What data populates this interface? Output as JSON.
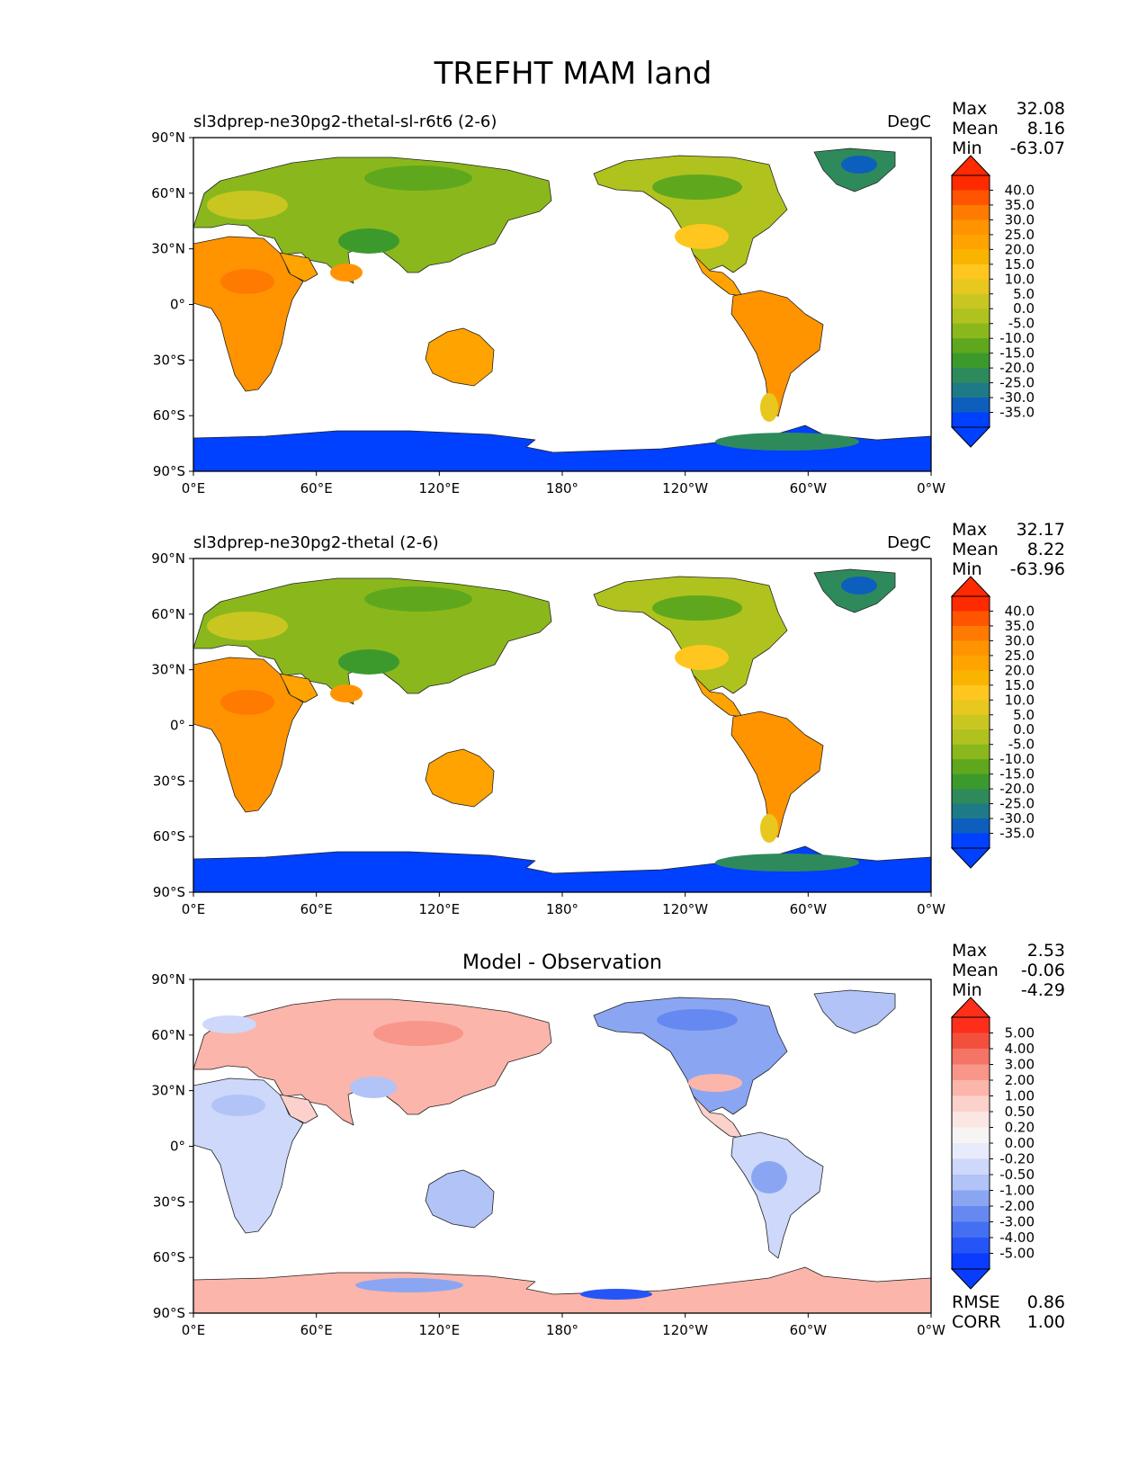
{
  "title": "TREFHT MAM land",
  "x_ticks": [
    "0°E",
    "60°E",
    "120°E",
    "180°",
    "120°W",
    "60°W",
    "0°W"
  ],
  "y_ticks": [
    "90°N",
    "60°N",
    "30°N",
    "0°",
    "30°S",
    "60°S",
    "90°S"
  ],
  "panels": [
    {
      "left_title": "sl3dprep-ne30pg2-thetal-sl-r6t6 (2-6)",
      "center_title": "",
      "units": "DegC",
      "stats": {
        "Max": "32.08",
        "Mean": "8.16",
        "Min": "-63.07"
      },
      "colorbar": {
        "labels": [
          "40.0",
          "35.0",
          "30.0",
          "25.0",
          "20.0",
          "15.0",
          "10.0",
          "5.0",
          "0.0",
          "-5.0",
          "-10.0",
          "-15.0",
          "-20.0",
          "-25.0",
          "-30.0",
          "-35.0"
        ],
        "colors": [
          "#ff2a00",
          "#ff5500",
          "#ff7a00",
          "#ff9400",
          "#ffa300",
          "#f9b400",
          "#ffc61f",
          "#e8c81e",
          "#c9c622",
          "#b0c21e",
          "#8ab81c",
          "#5fa81d",
          "#3c9a2c",
          "#2f8a5b",
          "#1f7a87",
          "#0d5fbd",
          "#0040ff"
        ],
        "max_color": "#ff2a00",
        "min_color": "#0040ff"
      },
      "footer": null
    },
    {
      "left_title": "sl3dprep-ne30pg2-thetal (2-6)",
      "center_title": "",
      "units": "DegC",
      "stats": {
        "Max": "32.17",
        "Mean": "8.22",
        "Min": "-63.96"
      },
      "colorbar": {
        "labels": [
          "40.0",
          "35.0",
          "30.0",
          "25.0",
          "20.0",
          "15.0",
          "10.0",
          "5.0",
          "0.0",
          "-5.0",
          "-10.0",
          "-15.0",
          "-20.0",
          "-25.0",
          "-30.0",
          "-35.0"
        ],
        "colors": [
          "#ff2a00",
          "#ff5500",
          "#ff7a00",
          "#ff9400",
          "#ffa300",
          "#f9b400",
          "#ffc61f",
          "#e8c81e",
          "#c9c622",
          "#b0c21e",
          "#8ab81c",
          "#5fa81d",
          "#3c9a2c",
          "#2f8a5b",
          "#1f7a87",
          "#0d5fbd",
          "#0040ff"
        ],
        "max_color": "#ff2a00",
        "min_color": "#0040ff"
      },
      "footer": null
    },
    {
      "left_title": "",
      "center_title": "Model - Observation",
      "units": "",
      "stats": {
        "Max": "2.53",
        "Mean": "-0.06",
        "Min": "-4.29"
      },
      "colorbar": {
        "labels": [
          "5.00",
          "4.00",
          "3.00",
          "2.00",
          "1.00",
          "0.50",
          "0.20",
          "0.00",
          "-0.20",
          "-0.50",
          "-1.00",
          "-2.00",
          "-3.00",
          "-4.00",
          "-5.00"
        ],
        "colors": [
          "#ff2e1a",
          "#f2503c",
          "#f47565",
          "#f8968a",
          "#fbb5ab",
          "#fdd1cb",
          "#fbe6e3",
          "#f7f4f4",
          "#e7ebfb",
          "#cdd8fa",
          "#b1c3f7",
          "#8aa6f3",
          "#6589f0",
          "#456ff2",
          "#2555f6",
          "#0a3cff"
        ],
        "max_color": "#ff2e1a",
        "min_color": "#0a3cff"
      },
      "footer": {
        "RMSE": "0.86",
        "CORR": "1.00"
      }
    }
  ]
}
